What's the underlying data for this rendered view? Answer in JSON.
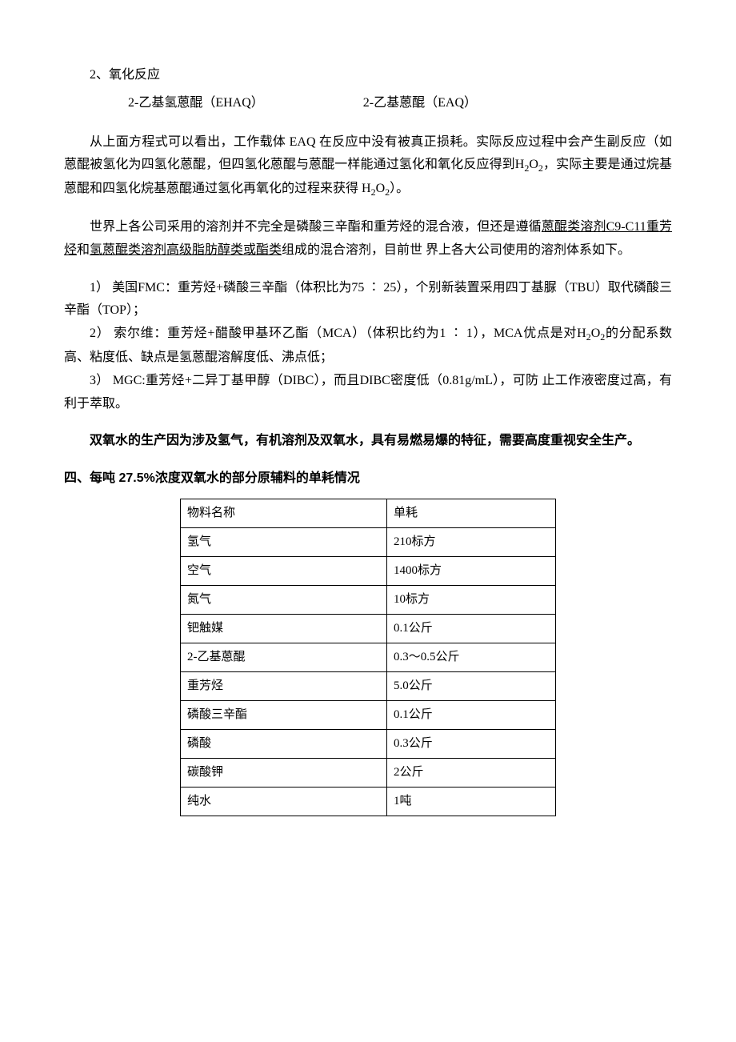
{
  "section2": {
    "title": "2、氧化反应",
    "formula_left": "2-乙基氢蒽醌（EHAQ）",
    "formula_right": "2-乙基蒽醌（EAQ）"
  },
  "para1_pre": "从上面方程式可以看出，工作载体 EAQ 在反应中没有被真正损耗。实际反应过程中会产生副反应（如蒽醌被氢化为四氢化蒽醌，但四氢化蒽醌与蒽醌一样能通过氢化和氧化反应得到H",
  "para1_mid1": "O",
  "para1_mid2": "，实际主要是通过烷基蒽醌和四氢化烷基蒽醌通过氢化再氧化的过程来获得 H",
  "para1_mid3": "O",
  "para1_end": "）。",
  "para2_pre": "世界上各公司采用的溶剂并不完全是磷酸三辛酯和重芳烃的混合液，但还是遵循",
  "para2_u1": "蒽醌类溶剂C9-C11重芳烃",
  "para2_mid": "和",
  "para2_u2": "氢蒽醌类溶剂高级脂肪醇类或酯类",
  "para2_end": "组成的混合溶剂，目前世  界上各大公司使用的溶剂体系如下。",
  "list1": "1） 美国FMC：重芳烃+磷酸三辛酯（体积比为75 ∶ 25），个别新装置采用四丁基脲（TBU）取代磷酸三辛酯（TOP）；",
  "list2_pre": "2） 索尔维：重芳烃+醋酸甲基环乙酯（MCA）（体积比约为1 ∶ 1），MCA优点是对H",
  "list2_mid1": "O",
  "list2_end": "的分配系数高、粘度低、缺点是氢蒽醌溶解度低、沸点低；",
  "list3": "3） MGC:重芳烃+二异丁基甲醇（DIBC），而且DIBC密度低（0.81g/mL），可防 止工作液密度过高，有利于萃取。",
  "bold_para": "双氧水的生产因为涉及氢气，有机溶剂及双氧水，具有易燃易爆的特征，需要高度重视安全生产。",
  "heading4": "四、每吨 27.5%浓度双氧水的部分原辅料的单耗情况",
  "table": {
    "columns": [
      "物料名称",
      "单耗"
    ],
    "rows": [
      [
        "氢气",
        "210标方"
      ],
      [
        "空气",
        "1400标方"
      ],
      [
        "氮气",
        "10标方"
      ],
      [
        "钯触媒",
        "0.1公斤"
      ],
      [
        "2-乙基蒽醌",
        "0.3〜0.5公斤"
      ],
      [
        "重芳烃",
        "5.0公斤"
      ],
      [
        "磷酸三辛酯",
        "0.1公斤"
      ],
      [
        "磷酸",
        "0.3公斤"
      ],
      [
        "碳酸钾",
        "2公斤"
      ],
      [
        "纯水",
        "1吨"
      ]
    ],
    "col1_width": "55%",
    "col2_width": "45%",
    "border_color": "#000000",
    "font_size": 15
  }
}
